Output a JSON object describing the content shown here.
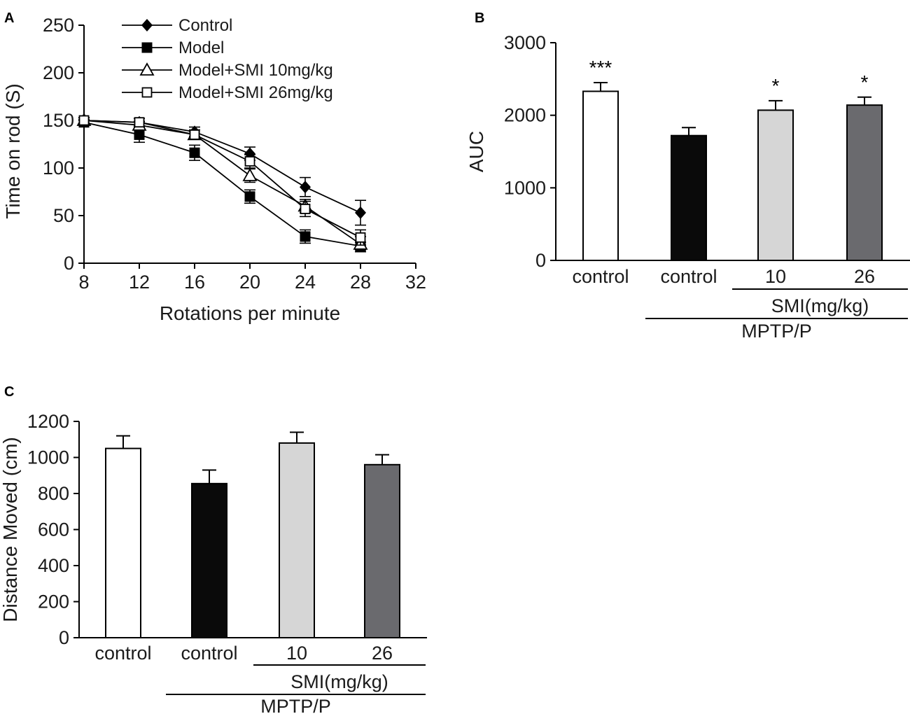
{
  "chart_data": [
    {
      "panel": "A",
      "type": "line",
      "xlabel": "Rotations per minute",
      "ylabel": "Time on rod (S)",
      "xlim": [
        8,
        32
      ],
      "ylim": [
        0,
        250
      ],
      "xticks": [
        8,
        12,
        16,
        20,
        24,
        28,
        32
      ],
      "yticks": [
        0,
        50,
        100,
        150,
        200,
        250
      ],
      "legend_position": "top-center",
      "x": [
        8,
        12,
        16,
        20,
        24,
        28
      ],
      "series": [
        {
          "name": "Control",
          "marker": "filled-diamond",
          "values": [
            150,
            148,
            138,
            115,
            80,
            53
          ],
          "errors": [
            3,
            4,
            5,
            7,
            10,
            13
          ]
        },
        {
          "name": "Model",
          "marker": "filled-square",
          "values": [
            148,
            135,
            116,
            70,
            28,
            18
          ],
          "errors": [
            3,
            8,
            8,
            7,
            7,
            4
          ]
        },
        {
          "name": "Model+SMI 10mg/kg",
          "marker": "open-triangle",
          "values": [
            150,
            145,
            135,
            92,
            60,
            20
          ],
          "errors": [
            3,
            4,
            5,
            7,
            7,
            8
          ]
        },
        {
          "name": "Model+SMI 26mg/kg",
          "marker": "open-square",
          "values": [
            150,
            148,
            135,
            107,
            57,
            27
          ],
          "errors": [
            3,
            4,
            5,
            7,
            8,
            8
          ]
        }
      ]
    },
    {
      "panel": "B",
      "type": "bar",
      "ylabel": "AUC",
      "ylim": [
        0,
        3000
      ],
      "yticks": [
        0,
        1000,
        2000,
        3000
      ],
      "categories": [
        "control",
        "control",
        "10",
        "26"
      ],
      "values": [
        2330,
        1720,
        2070,
        2140
      ],
      "errors": [
        120,
        110,
        130,
        110
      ],
      "colors": [
        "#ffffff",
        "#0a0a0a",
        "#d6d6d6",
        "#6a6a6e"
      ],
      "significance": [
        "***",
        "",
        "*",
        "*"
      ],
      "group_labels": [
        {
          "label": "SMI(mg/kg)",
          "spans": [
            2,
            3
          ]
        },
        {
          "label": "MPTP/P",
          "spans": [
            1,
            3
          ]
        }
      ]
    },
    {
      "panel": "C",
      "type": "bar",
      "ylabel": "Distance Moved (cm)",
      "ylim": [
        0,
        1200
      ],
      "yticks": [
        0,
        200,
        400,
        600,
        800,
        1000,
        1200
      ],
      "categories": [
        "control",
        "control",
        "10",
        "26"
      ],
      "values": [
        1050,
        855,
        1080,
        960
      ],
      "errors": [
        70,
        75,
        60,
        55
      ],
      "colors": [
        "#ffffff",
        "#0a0a0a",
        "#d6d6d6",
        "#6a6a6e"
      ],
      "group_labels": [
        {
          "label": "SMI(mg/kg)",
          "spans": [
            2,
            3
          ]
        },
        {
          "label": "MPTP/P",
          "spans": [
            1,
            3
          ]
        }
      ]
    }
  ]
}
